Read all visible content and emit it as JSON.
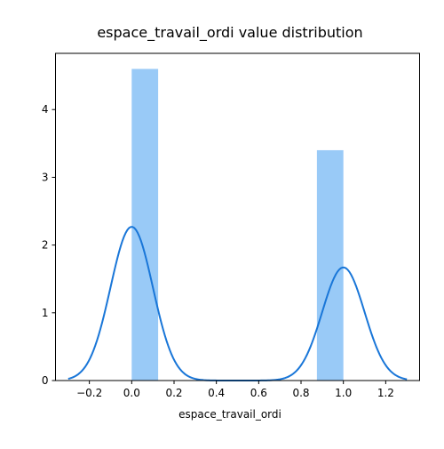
{
  "chart_data": {
    "type": "bar",
    "title": "espace_travail_ordi value distribution",
    "xlabel": "espace_travail_ordi",
    "ylabel": "",
    "xlim": [
      -0.36,
      1.36
    ],
    "ylim": [
      0,
      4.83
    ],
    "xticks": [
      -0.2,
      0.0,
      0.2,
      0.4,
      0.6,
      0.8,
      1.0,
      1.2
    ],
    "xtick_labels": [
      "−0.2",
      "0.0",
      "0.2",
      "0.4",
      "0.6",
      "0.8",
      "1.0",
      "1.2"
    ],
    "yticks": [
      0,
      1,
      2,
      3,
      4
    ],
    "ytick_labels": [
      "0",
      "1",
      "2",
      "3",
      "4"
    ],
    "grid": false,
    "series": [
      {
        "kind": "histogram",
        "color": "#99caf7",
        "bins": [
          {
            "x0": 0.0,
            "x1": 0.125,
            "value": 4.6
          },
          {
            "x0": 0.875,
            "x1": 1.0,
            "value": 3.4
          }
        ]
      },
      {
        "kind": "kde",
        "color": "#1976d8",
        "components": [
          {
            "center": 0.0,
            "sd": 0.1,
            "height": 2.27
          },
          {
            "center": 1.0,
            "sd": 0.1,
            "height": 1.67
          }
        ],
        "x_range": [
          -0.3,
          1.3
        ]
      }
    ]
  }
}
